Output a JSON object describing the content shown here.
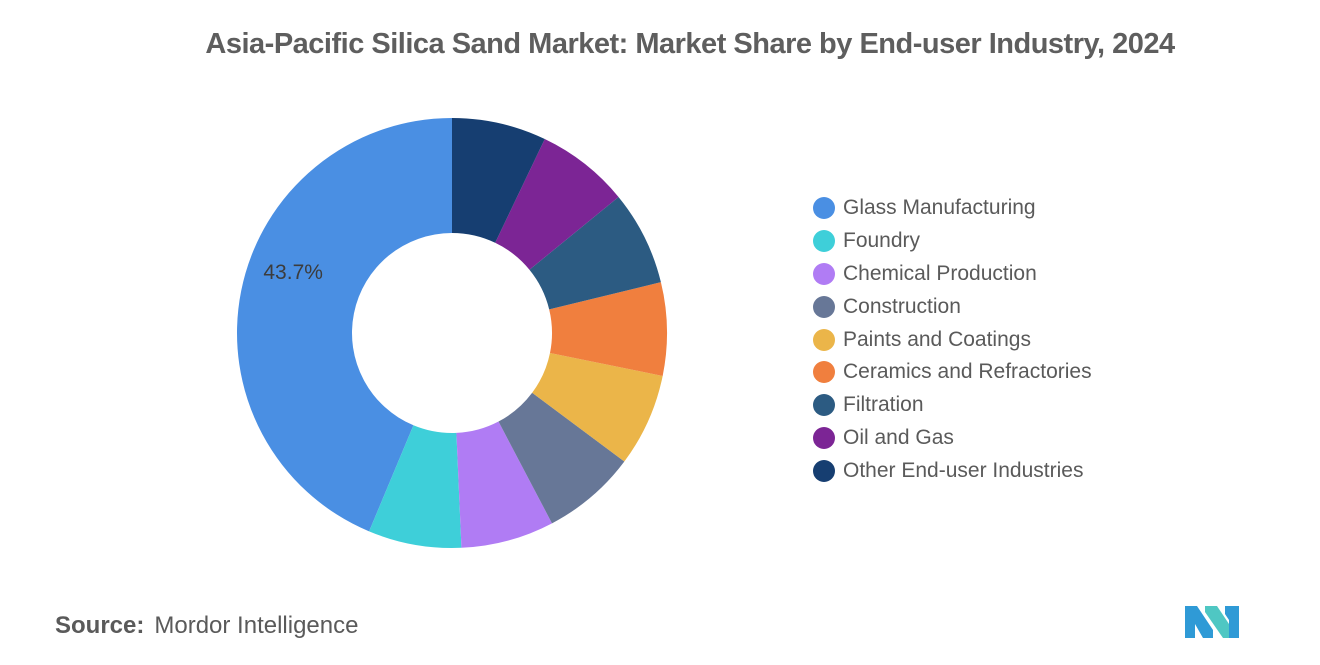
{
  "chart_data": {
    "type": "pie",
    "title": "Asia-Pacific Silica Sand Market: Market Share by End-user Industry, 2024",
    "categories": [
      "Glass Manufacturing",
      "Foundry",
      "Chemical Production",
      "Construction",
      "Paints and Coatings",
      "Ceramics and Refractories",
      "Filtration",
      "Oil and Gas",
      "Other End-user Industries"
    ],
    "values": [
      43.7,
      7.0,
      7.0,
      7.1,
      7.0,
      7.0,
      7.1,
      7.0,
      7.1
    ],
    "colors": [
      "#4a8fe3",
      "#3ecfd9",
      "#b07cf4",
      "#677797",
      "#ebb549",
      "#f07f3e",
      "#2c5b82",
      "#7c2595",
      "#163e71"
    ],
    "data_labels": {
      "Glass Manufacturing": "43.7%"
    },
    "legend_position": "right"
  },
  "source": {
    "label": "Source:",
    "text": "Mordor Intelligence"
  },
  "logo": {
    "icon": "mordor-intelligence-logo"
  }
}
